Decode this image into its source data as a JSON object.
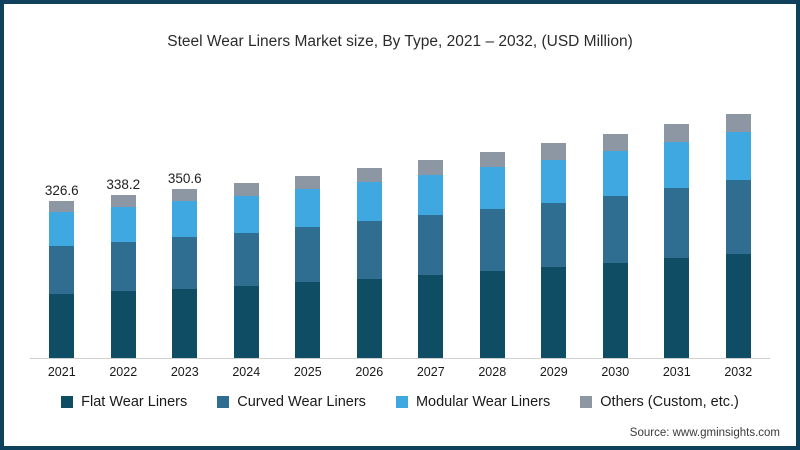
{
  "title": "Steel Wear Liners Market size, By Type, 2021 – 2032, (USD Million)",
  "source": {
    "label": "Source: www.gminsights.com"
  },
  "frame_color": "#0f405c",
  "axis_color": "#cfcfcf",
  "chart_data": {
    "type": "bar",
    "stacked": true,
    "title": "Steel Wear Liners Market size, By Type, 2021 – 2032, (USD Million)",
    "xlabel": "",
    "ylabel": "USD Million",
    "grid": false,
    "legend_position": "bottom",
    "categories": [
      "2021",
      "2022",
      "2023",
      "2024",
      "2025",
      "2026",
      "2027",
      "2028",
      "2029",
      "2030",
      "2031",
      "2032"
    ],
    "series": [
      {
        "name": "Flat Wear Liners",
        "color": "#0e4d63",
        "values": [
          132.9,
          138.3,
          144.1,
          150.3,
          157.1,
          164.3,
          172.0,
          179.6,
          188.0,
          196.9,
          206.6,
          216.8
        ]
      },
      {
        "name": "Curved Wear Liners",
        "color": "#2f6d91",
        "values": [
          99.0,
          102.4,
          106.1,
          110.1,
          114.5,
          119.2,
          124.2,
          129.5,
          134.7,
          140.2,
          146.2,
          153.5
        ]
      },
      {
        "name": "Modular Wear Liners",
        "color": "#3fa8e0",
        "values": [
          71.2,
          73.0,
          74.7,
          76.8,
          79.1,
          81.6,
          84.2,
          86.4,
          89.1,
          92.0,
          94.6,
          97.8
        ]
      },
      {
        "name": "Others (Custom, etc.)",
        "color": "#8c97a3",
        "values": [
          23.5,
          24.5,
          25.7,
          26.8,
          27.8,
          28.9,
          30.1,
          32.0,
          33.7,
          35.4,
          37.6,
          38.4
        ]
      }
    ],
    "totals": [
      326.6,
      338.2,
      350.6,
      364.0,
      378.5,
      394.0,
      410.5,
      427.5,
      445.5,
      464.5,
      485.0,
      506.5
    ],
    "value_labels": {
      "2021": "326.6",
      "2022": "338.2",
      "2023": "350.6"
    }
  }
}
